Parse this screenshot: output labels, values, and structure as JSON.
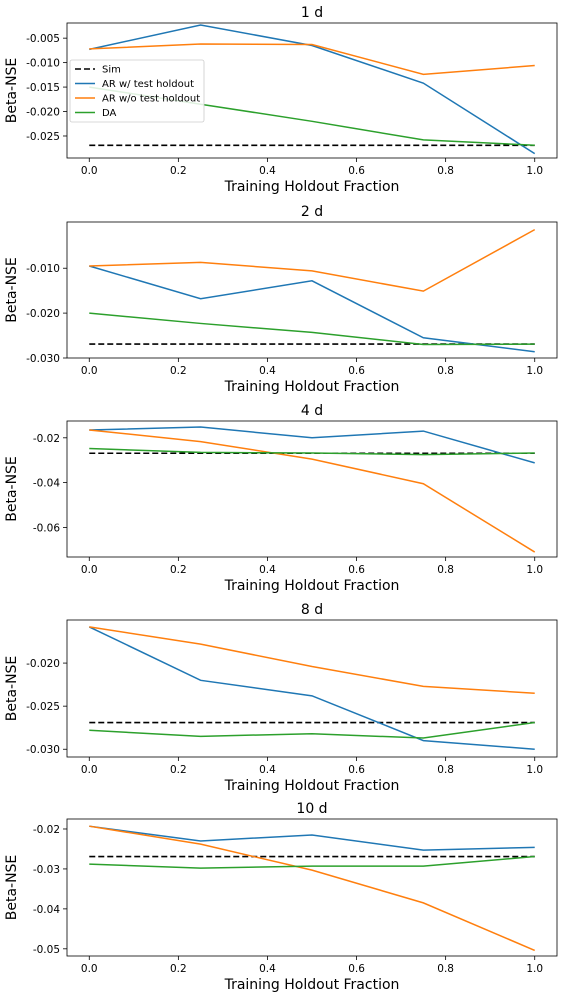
{
  "colors": {
    "sim": "#000000",
    "ar_test": "#1f77b4",
    "ar_notest": "#ff7f0e",
    "da": "#2ca02c"
  },
  "legend": {
    "placement": "upper-left",
    "entries": [
      "Sim",
      "AR w/ test holdout",
      "AR w/o test holdout",
      "DA"
    ]
  },
  "chart_data": [
    {
      "type": "line",
      "title": "1 d",
      "xlabel": "Training Holdout Fraction",
      "ylabel": "Beta-NSE",
      "x": [
        0.0,
        0.25,
        0.5,
        0.75,
        1.0
      ],
      "xlim": [
        -0.05,
        1.05
      ],
      "ylim": [
        -0.0295,
        -0.0019
      ],
      "xticks": [
        "0.0",
        "0.2",
        "0.4",
        "0.6",
        "0.8",
        "1.0"
      ],
      "xtick_values": [
        0.0,
        0.2,
        0.4,
        0.6,
        0.8,
        1.0
      ],
      "yticks": [
        "-0.025",
        "-0.020",
        "-0.015",
        "-0.010",
        "-0.005"
      ],
      "ytick_values": [
        -0.025,
        -0.02,
        -0.015,
        -0.01,
        -0.005
      ],
      "grid": false,
      "show_legend": true,
      "series": [
        {
          "name": "Sim",
          "style": "dashed",
          "values": [
            -0.0269,
            -0.0269,
            -0.0269,
            -0.0269,
            -0.0269
          ]
        },
        {
          "name": "AR w/ test holdout",
          "values": [
            -0.0073,
            -0.0023,
            -0.0065,
            -0.0142,
            -0.0286
          ]
        },
        {
          "name": "AR w/o test holdout",
          "values": [
            -0.0072,
            -0.0062,
            -0.0063,
            -0.0124,
            -0.0106
          ]
        },
        {
          "name": "DA",
          "values": [
            -0.015,
            -0.0185,
            -0.022,
            -0.0258,
            -0.0269
          ]
        }
      ]
    },
    {
      "type": "line",
      "title": "2 d",
      "xlabel": "Training Holdout Fraction",
      "ylabel": "Beta-NSE",
      "x": [
        0.0,
        0.25,
        0.5,
        0.75,
        1.0
      ],
      "xlim": [
        -0.05,
        1.05
      ],
      "ylim": [
        -0.03,
        0.0003
      ],
      "xticks": [
        "0.0",
        "0.2",
        "0.4",
        "0.6",
        "0.8",
        "1.0"
      ],
      "xtick_values": [
        0.0,
        0.2,
        0.4,
        0.6,
        0.8,
        1.0
      ],
      "yticks": [
        "-0.030",
        "-0.020",
        "-0.010"
      ],
      "ytick_values": [
        -0.03,
        -0.02,
        -0.01
      ],
      "grid": false,
      "show_legend": false,
      "series": [
        {
          "name": "Sim",
          "style": "dashed",
          "values": [
            -0.0269,
            -0.0269,
            -0.0269,
            -0.0269,
            -0.0269
          ]
        },
        {
          "name": "AR w/ test holdout",
          "values": [
            -0.0095,
            -0.0168,
            -0.0128,
            -0.0255,
            -0.0286
          ]
        },
        {
          "name": "AR w/o test holdout",
          "values": [
            -0.0095,
            -0.0087,
            -0.0106,
            -0.0151,
            -0.0014
          ]
        },
        {
          "name": "DA",
          "values": [
            -0.02,
            -0.0223,
            -0.0243,
            -0.027,
            -0.0269
          ]
        }
      ]
    },
    {
      "type": "line",
      "title": "4 d",
      "xlabel": "Training Holdout Fraction",
      "ylabel": "Beta-NSE",
      "x": [
        0.0,
        0.25,
        0.5,
        0.75,
        1.0
      ],
      "xlim": [
        -0.05,
        1.05
      ],
      "ylim": [
        -0.0732,
        -0.0125
      ],
      "xticks": [
        "0.0",
        "0.2",
        "0.4",
        "0.6",
        "0.8",
        "1.0"
      ],
      "xtick_values": [
        0.0,
        0.2,
        0.4,
        0.6,
        0.8,
        1.0
      ],
      "yticks": [
        "-0.06",
        "-0.04",
        "-0.02"
      ],
      "ytick_values": [
        -0.06,
        -0.04,
        -0.02
      ],
      "grid": false,
      "show_legend": false,
      "series": [
        {
          "name": "Sim",
          "style": "dashed",
          "values": [
            -0.0269,
            -0.0269,
            -0.0269,
            -0.0269,
            -0.0269
          ]
        },
        {
          "name": "AR w/ test holdout",
          "values": [
            -0.0165,
            -0.0152,
            -0.02,
            -0.017,
            -0.0312
          ]
        },
        {
          "name": "AR w/o test holdout",
          "values": [
            -0.0165,
            -0.0217,
            -0.0295,
            -0.0405,
            -0.071
          ]
        },
        {
          "name": "DA",
          "values": [
            -0.0248,
            -0.0265,
            -0.0268,
            -0.0275,
            -0.0268
          ]
        }
      ]
    },
    {
      "type": "line",
      "title": "8 d",
      "xlabel": "Training Holdout Fraction",
      "ylabel": "Beta-NSE",
      "x": [
        0.0,
        0.25,
        0.5,
        0.75,
        1.0
      ],
      "xlim": [
        -0.05,
        1.05
      ],
      "ylim": [
        -0.0309,
        -0.015
      ],
      "xticks": [
        "0.0",
        "0.2",
        "0.4",
        "0.6",
        "0.8",
        "1.0"
      ],
      "xtick_values": [
        0.0,
        0.2,
        0.4,
        0.6,
        0.8,
        1.0
      ],
      "yticks": [
        "-0.030",
        "-0.025",
        "-0.020"
      ],
      "ytick_values": [
        -0.03,
        -0.025,
        -0.02
      ],
      "grid": false,
      "show_legend": false,
      "series": [
        {
          "name": "Sim",
          "style": "dashed",
          "values": [
            -0.0269,
            -0.0269,
            -0.0269,
            -0.0269,
            -0.0269
          ]
        },
        {
          "name": "AR w/ test holdout",
          "values": [
            -0.0158,
            -0.022,
            -0.0238,
            -0.029,
            -0.03
          ]
        },
        {
          "name": "AR w/o test holdout",
          "values": [
            -0.0158,
            -0.0178,
            -0.0204,
            -0.0227,
            -0.0235
          ]
        },
        {
          "name": "DA",
          "values": [
            -0.0278,
            -0.0285,
            -0.0282,
            -0.0287,
            -0.0269
          ]
        }
      ]
    },
    {
      "type": "line",
      "title": "10 d",
      "xlabel": "Training Holdout Fraction",
      "ylabel": "Beta-NSE",
      "x": [
        0.0,
        0.25,
        0.5,
        0.75,
        1.0
      ],
      "xlim": [
        -0.05,
        1.05
      ],
      "ylim": [
        -0.0518,
        -0.0175
      ],
      "xticks": [
        "0.0",
        "0.2",
        "0.4",
        "0.6",
        "0.8",
        "1.0"
      ],
      "xtick_values": [
        0.0,
        0.2,
        0.4,
        0.6,
        0.8,
        1.0
      ],
      "yticks": [
        "-0.05",
        "-0.04",
        "-0.03",
        "-0.02"
      ],
      "ytick_values": [
        -0.05,
        -0.04,
        -0.03,
        -0.02
      ],
      "grid": false,
      "show_legend": false,
      "series": [
        {
          "name": "Sim",
          "style": "dashed",
          "values": [
            -0.0269,
            -0.0269,
            -0.0269,
            -0.0269,
            -0.0269
          ]
        },
        {
          "name": "AR w/ test holdout",
          "values": [
            -0.0193,
            -0.023,
            -0.0215,
            -0.0253,
            -0.0246
          ]
        },
        {
          "name": "AR w/o test holdout",
          "values": [
            -0.0193,
            -0.0238,
            -0.0303,
            -0.0385,
            -0.0504
          ]
        },
        {
          "name": "DA",
          "values": [
            -0.0288,
            -0.0298,
            -0.0293,
            -0.0293,
            -0.0269
          ]
        }
      ]
    }
  ]
}
